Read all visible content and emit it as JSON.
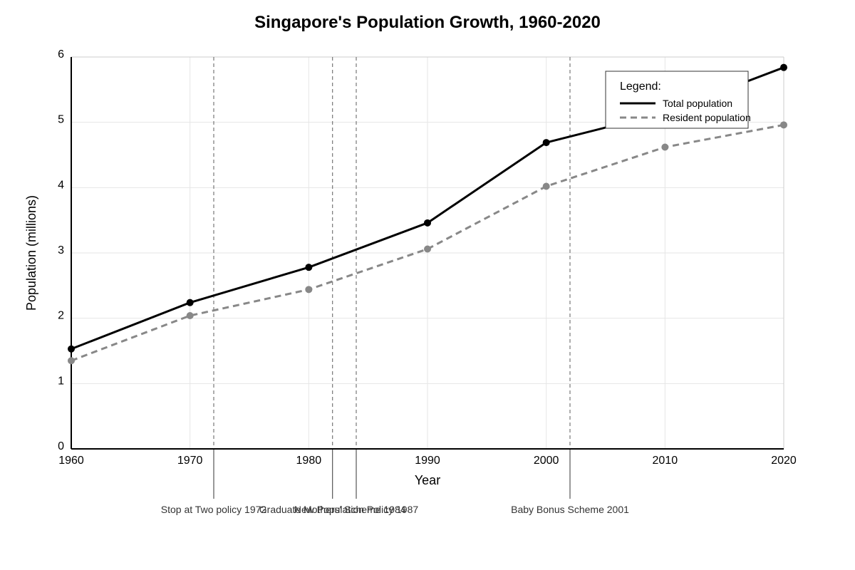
{
  "chart_data": {
    "type": "line",
    "title": "Singapore's Population Growth, 1960-2020",
    "xlabel": "Year",
    "ylabel": "Population (millions)",
    "x": [
      1960,
      1970,
      1980,
      1990,
      2000,
      2010,
      2020
    ],
    "xlim": [
      1960,
      2020
    ],
    "ylim": [
      0,
      6
    ],
    "x_ticks": [
      "1960",
      "1970",
      "1980",
      "1990",
      "2000",
      "2010",
      "2020"
    ],
    "y_ticks": [
      "0",
      "1",
      "2",
      "3",
      "4",
      "5",
      "6"
    ],
    "grid": true,
    "series": [
      {
        "name": "Total population",
        "values": [
          1.53,
          2.24,
          2.78,
          3.46,
          4.69,
          5.15,
          5.84
        ],
        "color": "#000000",
        "style": "solid"
      },
      {
        "name": "Resident population",
        "values": [
          1.35,
          2.04,
          2.44,
          3.06,
          4.02,
          4.62,
          4.96
        ],
        "color": "#888888",
        "style": "dashed"
      }
    ],
    "legend": {
      "title": "Legend:",
      "placement": "top-right"
    },
    "annotations": [
      {
        "year": 1972,
        "label": "Stop at Two policy 1972"
      },
      {
        "year": 1982,
        "label": "Graduate Mothers' Scheme 1984"
      },
      {
        "year": 1984,
        "label": "New Population Policy 1987"
      },
      {
        "year": 2002,
        "label": "Baby Bonus Scheme 2001"
      }
    ]
  }
}
